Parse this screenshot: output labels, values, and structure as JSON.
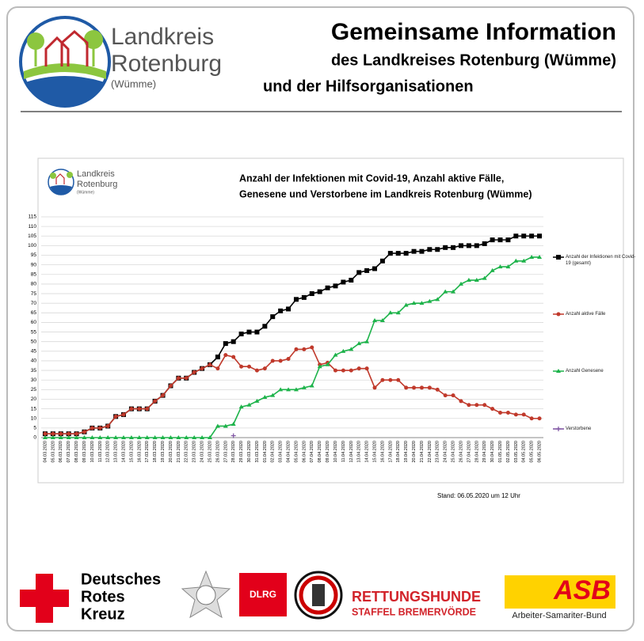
{
  "header": {
    "logo": {
      "line1": "Landkreis",
      "line2": "Rotenburg",
      "line3": "(Wümme)"
    },
    "title": "Gemeinsame Information",
    "subtitle1": "des Landkreises Rotenburg (Wümme)",
    "subtitle2": "und der Hilfsorganisationen"
  },
  "chart_data": {
    "type": "line",
    "title_lines": [
      "Anzahl der Infektionen mit Covid-19, Anzahl aktive Fälle,",
      "Genesene und Verstorbene im Landkreis Rotenburg (Wümme)"
    ],
    "categories": [
      "04.03.2020",
      "05.03.2020",
      "06.03.2020",
      "07.03.2020",
      "08.03.2020",
      "09.03.2020",
      "10.03.2020",
      "11.03.2020",
      "12.03.2020",
      "13.03.2020",
      "14.03.2020",
      "15.03.2020",
      "16.03.2020",
      "17.03.2020",
      "18.03.2020",
      "19.03.2020",
      "20.03.2020",
      "21.03.2020",
      "22.03.2020",
      "23.03.2020",
      "24.03.2020",
      "25.03.2020",
      "26.03.2020",
      "27.03.2020",
      "28.03.2020",
      "29.03.2020",
      "30.03.2020",
      "31.03.2020",
      "01.04.2020",
      "02.04.2020",
      "03.04.2020",
      "04.04.2020",
      "05.04.2020",
      "06.04.2020",
      "07.04.2020",
      "08.04.2020",
      "09.04.2020",
      "10.04.2020",
      "11.04.2020",
      "12.04.2020",
      "13.04.2020",
      "14.04.2020",
      "15.04.2020",
      "16.04.2020",
      "17.04.2020",
      "18.04.2020",
      "19.04.2020",
      "20.04.2020",
      "21.04.2020",
      "22.04.2020",
      "23.04.2020",
      "24.04.2020",
      "25.04.2020",
      "26.04.2020",
      "27.04.2020",
      "28.04.2020",
      "29.04.2020",
      "30.04.2020",
      "01.05.2020",
      "02.05.2020",
      "03.05.2020",
      "04.05.2020",
      "05.05.2020",
      "06.05.2020"
    ],
    "series": [
      {
        "name": "Anzahl der Infektionen mit Covid-19 (gesamt)",
        "color": "#000000",
        "marker": "square",
        "values": [
          2,
          2,
          2,
          2,
          2,
          3,
          5,
          5,
          6,
          11,
          12,
          15,
          15,
          15,
          19,
          22,
          27,
          31,
          31,
          34,
          36,
          38,
          42,
          49,
          50,
          54,
          55,
          55,
          58,
          63,
          66,
          67,
          72,
          73,
          75,
          76,
          78,
          79,
          81,
          82,
          86,
          87,
          88,
          92,
          96,
          96,
          96,
          97,
          97,
          98,
          98,
          99,
          99,
          100,
          100,
          100,
          101,
          103,
          103,
          103,
          105,
          105,
          105,
          105
        ]
      },
      {
        "name": "Anzahl aktive Fälle",
        "color": "#c0392b",
        "marker": "circle",
        "values": [
          2,
          2,
          2,
          2,
          2,
          3,
          5,
          5,
          6,
          11,
          12,
          15,
          15,
          15,
          19,
          22,
          27,
          31,
          31,
          34,
          36,
          38,
          36,
          43,
          42,
          37,
          37,
          35,
          36,
          40,
          40,
          41,
          46,
          46,
          47,
          38,
          39,
          35,
          35,
          35,
          36,
          36,
          26,
          30,
          30,
          30,
          26,
          26,
          26,
          26,
          25,
          22,
          22,
          19,
          17,
          17,
          17,
          15,
          13,
          13,
          12,
          12,
          10,
          10
        ]
      },
      {
        "name": "Anzahl Genesene",
        "color": "#1db34a",
        "marker": "triangle",
        "values": [
          0,
          0,
          0,
          0,
          0,
          0,
          0,
          0,
          0,
          0,
          0,
          0,
          0,
          0,
          0,
          0,
          0,
          0,
          0,
          0,
          0,
          0,
          6,
          6,
          7,
          16,
          17,
          19,
          21,
          22,
          25,
          25,
          25,
          26,
          27,
          37,
          38,
          43,
          45,
          46,
          49,
          50,
          61,
          61,
          65,
          65,
          69,
          70,
          70,
          71,
          72,
          76,
          76,
          80,
          82,
          82,
          83,
          87,
          89,
          89,
          92,
          92,
          94,
          94
        ]
      },
      {
        "name": "Verstorbene",
        "color": "#7b4fa0",
        "marker": "plus",
        "values": [
          null,
          null,
          null,
          null,
          null,
          null,
          null,
          null,
          null,
          null,
          null,
          null,
          null,
          null,
          null,
          null,
          null,
          null,
          null,
          null,
          null,
          null,
          null,
          null,
          1,
          null,
          null,
          null,
          null,
          null,
          null,
          null,
          null,
          null,
          null,
          null,
          null,
          null,
          null,
          null,
          null,
          null,
          null,
          null,
          null,
          null,
          null,
          null,
          null,
          null,
          null,
          null,
          null,
          null,
          null,
          null,
          null,
          null,
          null,
          null,
          null,
          null,
          null,
          null
        ]
      }
    ],
    "ylim": [
      0,
      115
    ],
    "yticks": [
      0,
      5,
      10,
      15,
      20,
      25,
      30,
      35,
      40,
      45,
      50,
      55,
      60,
      65,
      70,
      75,
      80,
      85,
      90,
      95,
      100,
      105,
      110,
      115
    ],
    "grid": true,
    "legend": "right",
    "note": "Stand: 06.05.2020 um 12 Uhr"
  },
  "footer": {
    "drk": [
      "Deutsches",
      "Rotes",
      "Kreuz"
    ],
    "dlrg": "DLRG",
    "rettungshunde": [
      "RETTUNGSHUNDE",
      "STAFFEL BREMERVÖRDE"
    ],
    "asb": "ASB",
    "asb_name": "Arbeiter-Samariter-Bund"
  }
}
